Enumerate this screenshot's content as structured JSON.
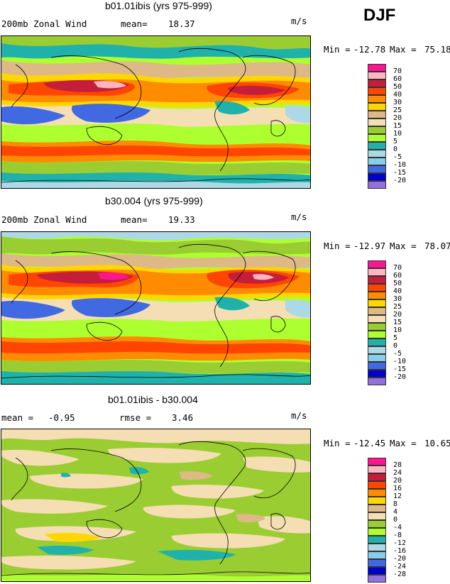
{
  "season": "DJF",
  "panels": [
    {
      "title": "b01.01ibis (yrs 975-999)",
      "left_label": "200mb Zonal Wind",
      "stat_label": "mean=",
      "stat_value": "18.37",
      "stat2_label": "",
      "stat2_value": "",
      "units": "m/s",
      "min_label": "Min =",
      "min_value": "-12.78",
      "max_label": "Max =",
      "max_value": "75.18",
      "legend_levels": [
        "70",
        "60",
        "50",
        "40",
        "30",
        "25",
        "20",
        "15",
        "10",
        "5",
        "0",
        "-5",
        "-10",
        "-15",
        "-20"
      ],
      "legend_colors": [
        "#ff1493",
        "#ffb6c1",
        "#c41e3a",
        "#ff4500",
        "#ff8c00",
        "#ffd700",
        "#deb887",
        "#f5deb3",
        "#9acd32",
        "#adff2f",
        "#20b2aa",
        "#add8e6",
        "#87ceeb",
        "#4169e1",
        "#0000cd",
        "#9370db"
      ]
    },
    {
      "title": "b30.004 (yrs 975-999)",
      "left_label": "200mb Zonal Wind",
      "stat_label": "mean=",
      "stat_value": "19.33",
      "stat2_label": "",
      "stat2_value": "",
      "units": "m/s",
      "min_label": "Min =",
      "min_value": "-12.97",
      "max_label": "Max =",
      "max_value": "78.07",
      "legend_levels": [
        "70",
        "60",
        "50",
        "40",
        "30",
        "25",
        "20",
        "15",
        "10",
        "5",
        "0",
        "-5",
        "-10",
        "-15",
        "-20"
      ],
      "legend_colors": [
        "#ff1493",
        "#ffb6c1",
        "#c41e3a",
        "#ff4500",
        "#ff8c00",
        "#ffd700",
        "#deb887",
        "#f5deb3",
        "#9acd32",
        "#adff2f",
        "#20b2aa",
        "#add8e6",
        "#87ceeb",
        "#4169e1",
        "#0000cd",
        "#9370db"
      ]
    },
    {
      "title": "b01.01ibis - b30.004",
      "left_label": "",
      "stat_label": "mean =",
      "stat_value": "-0.95",
      "stat2_label": "rmse =",
      "stat2_value": "3.46",
      "units": "m/s",
      "min_label": "Min =",
      "min_value": "-12.45",
      "max_label": "Max =",
      "max_value": "10.65",
      "legend_levels": [
        "28",
        "24",
        "20",
        "16",
        "12",
        "8",
        "4",
        "0",
        "-4",
        "-8",
        "-12",
        "-16",
        "-20",
        "-24",
        "-28"
      ],
      "legend_colors": [
        "#ff1493",
        "#ffb6c1",
        "#c41e3a",
        "#ff4500",
        "#ff8c00",
        "#ffd700",
        "#deb887",
        "#f5deb3",
        "#9acd32",
        "#adff2f",
        "#20b2aa",
        "#add8e6",
        "#87ceeb",
        "#4169e1",
        "#0000cd",
        "#9370db"
      ]
    }
  ]
}
